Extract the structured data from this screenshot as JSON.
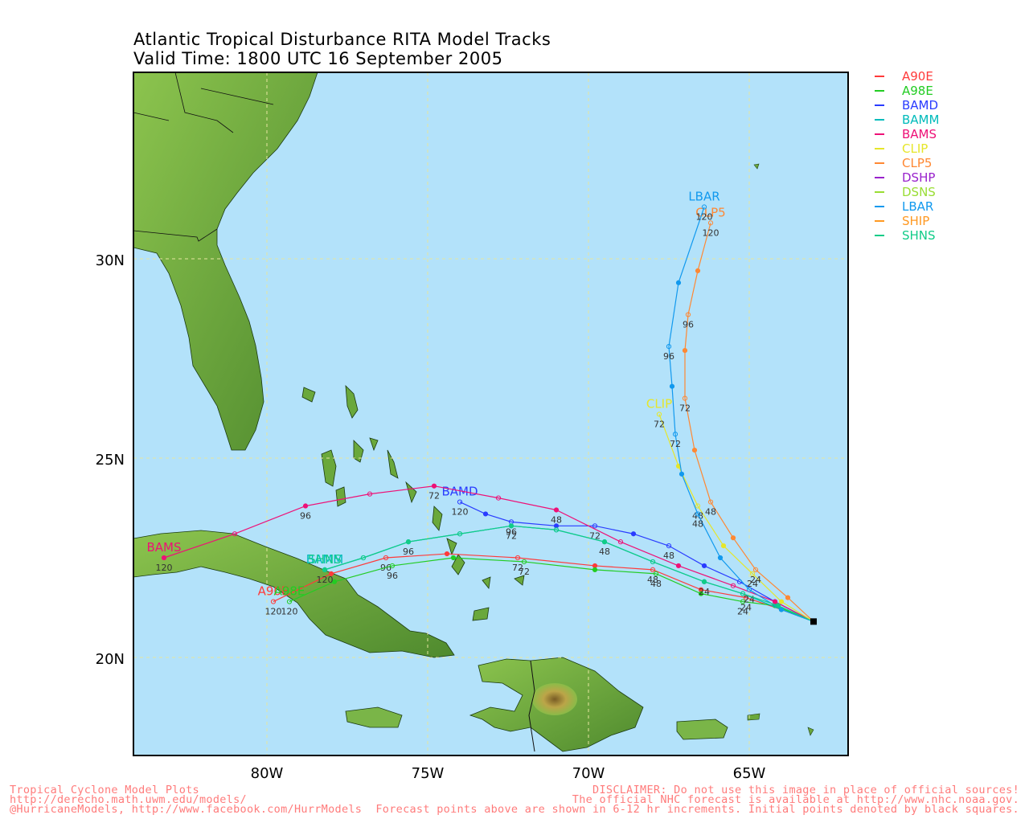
{
  "title_line1": "Atlantic Tropical Disturbance RITA Model Tracks",
  "title_line2": "Valid Time: 1800 UTC 16 September 2005",
  "axes": {
    "lat_labels": [
      "30N",
      "25N",
      "20N"
    ],
    "lon_labels": [
      "80W",
      "75W",
      "70W",
      "65W"
    ],
    "lon_range": [
      -84.0,
      -62.0
    ],
    "lat_range": [
      17.5,
      35.0
    ],
    "grid": true
  },
  "colors": {
    "ocean": "#b3e2fa",
    "land": "#5f9a3a",
    "grid": "#e6e6a0"
  },
  "models": [
    {
      "name": "A90E",
      "color": "#ff3a3a"
    },
    {
      "name": "A98E",
      "color": "#22cc22"
    },
    {
      "name": "BAMD",
      "color": "#2a3cff"
    },
    {
      "name": "BAMM",
      "color": "#00bbbb"
    },
    {
      "name": "BAMS",
      "color": "#ee1177"
    },
    {
      "name": "CLIP",
      "color": "#e6e62a"
    },
    {
      "name": "CLP5",
      "color": "#ff8833"
    },
    {
      "name": "DSHP",
      "color": "#9922cc"
    },
    {
      "name": "DSNS",
      "color": "#99dd33"
    },
    {
      "name": "LBAR",
      "color": "#1199ee"
    },
    {
      "name": "SHIP",
      "color": "#ff9922"
    },
    {
      "name": "SHNS",
      "color": "#11cc88"
    }
  ],
  "initial_position": {
    "lon": -63.0,
    "lat": 20.9
  },
  "chart_data": {
    "type": "map-tracks",
    "title": "Atlantic Tropical Disturbance RITA Model Tracks",
    "subtitle": "Valid Time: 1800 UTC 16 September 2005",
    "tracks": [
      {
        "name": "A90E",
        "end_label": "A90E",
        "points": [
          [
            -63.0,
            20.9
          ],
          [
            -64.0,
            21.2
          ],
          [
            -65.1,
            21.5
          ],
          [
            -66.5,
            21.7
          ],
          [
            -68.0,
            22.2
          ],
          [
            -69.8,
            22.3
          ],
          [
            -72.2,
            22.5
          ],
          [
            -74.4,
            22.6
          ],
          [
            -76.3,
            22.5
          ],
          [
            -78.0,
            22.1
          ],
          [
            -79.8,
            21.4
          ]
        ],
        "hour_labels": [
          {
            "t": "24",
            "lon": -65.1,
            "lat": 21.5
          },
          {
            "t": "48",
            "lon": -68.0,
            "lat": 22.2
          },
          {
            "t": "72",
            "lon": -72.2,
            "lat": 22.5
          },
          {
            "t": "96",
            "lon": -76.3,
            "lat": 22.5
          },
          {
            "t": "120",
            "lon": -79.8,
            "lat": 21.4
          }
        ]
      },
      {
        "name": "A98E",
        "end_label": "A98E",
        "points": [
          [
            -63.0,
            20.9
          ],
          [
            -64.2,
            21.3
          ],
          [
            -65.2,
            21.4
          ],
          [
            -66.5,
            21.6
          ],
          [
            -67.9,
            22.1
          ],
          [
            -69.8,
            22.2
          ],
          [
            -72.0,
            22.4
          ],
          [
            -74.2,
            22.5
          ],
          [
            -76.1,
            22.3
          ],
          [
            -77.9,
            21.9
          ],
          [
            -79.3,
            21.4
          ]
        ],
        "hour_labels": [
          {
            "t": "24",
            "lon": -65.2,
            "lat": 21.4
          },
          {
            "t": "48",
            "lon": -67.9,
            "lat": 22.1
          },
          {
            "t": "72",
            "lon": -72.0,
            "lat": 22.4
          },
          {
            "t": "96",
            "lon": -76.1,
            "lat": 22.3
          },
          {
            "t": "120",
            "lon": -79.3,
            "lat": 21.4
          }
        ]
      },
      {
        "name": "BAMD",
        "end_label": "BAMD",
        "points": [
          [
            -63.0,
            20.9
          ],
          [
            -64.2,
            21.4
          ],
          [
            -65.3,
            21.9
          ],
          [
            -66.4,
            22.3
          ],
          [
            -67.5,
            22.8
          ],
          [
            -68.6,
            23.1
          ],
          [
            -69.8,
            23.3
          ],
          [
            -71.0,
            23.3
          ],
          [
            -72.4,
            23.4
          ],
          [
            -73.2,
            23.6
          ],
          [
            -74.0,
            23.9
          ]
        ],
        "hour_labels": [
          {
            "t": "48",
            "lon": -67.5,
            "lat": 22.8
          },
          {
            "t": "72",
            "lon": -69.8,
            "lat": 23.3
          },
          {
            "t": "96",
            "lon": -72.4,
            "lat": 23.4
          },
          {
            "t": "120",
            "lon": -74.0,
            "lat": 23.9
          }
        ]
      },
      {
        "name": "BAMM",
        "end_label": "BAMM",
        "points": [
          [
            -63.0,
            20.9
          ],
          [
            -64.0,
            21.2
          ],
          [
            -65.2,
            21.6
          ],
          [
            -66.4,
            21.9
          ],
          [
            -68.0,
            22.4
          ],
          [
            -69.5,
            22.9
          ],
          [
            -71.0,
            23.2
          ],
          [
            -72.4,
            23.3
          ],
          [
            -74.0,
            23.1
          ],
          [
            -75.6,
            22.9
          ],
          [
            -77.0,
            22.5
          ],
          [
            -78.2,
            22.2
          ]
        ],
        "hour_labels": [
          {
            "t": "24",
            "lon": -66.4,
            "lat": 21.9
          },
          {
            "t": "48",
            "lon": -69.5,
            "lat": 22.9
          },
          {
            "t": "72",
            "lon": -72.4,
            "lat": 23.3
          },
          {
            "t": "96",
            "lon": -75.6,
            "lat": 22.9
          },
          {
            "t": "120",
            "lon": -78.2,
            "lat": 22.2
          }
        ]
      },
      {
        "name": "BAMS",
        "end_label": "BAMS",
        "points": [
          [
            -63.0,
            20.9
          ],
          [
            -64.2,
            21.4
          ],
          [
            -65.5,
            21.8
          ],
          [
            -67.2,
            22.3
          ],
          [
            -69.0,
            22.9
          ],
          [
            -71.0,
            23.7
          ],
          [
            -72.8,
            24.0
          ],
          [
            -74.8,
            24.3
          ],
          [
            -76.8,
            24.1
          ],
          [
            -78.8,
            23.8
          ],
          [
            -81.0,
            23.1
          ],
          [
            -83.2,
            22.5
          ]
        ],
        "hour_labels": [
          {
            "t": "48",
            "lon": -71.0,
            "lat": 23.7
          },
          {
            "t": "72",
            "lon": -74.8,
            "lat": 24.3
          },
          {
            "t": "96",
            "lon": -78.8,
            "lat": 23.8
          },
          {
            "t": "120",
            "lon": -83.2,
            "lat": 22.5
          }
        ]
      },
      {
        "name": "CLIP",
        "end_label": "CLIP",
        "points": [
          [
            -63.0,
            20.9
          ],
          [
            -64.0,
            21.4
          ],
          [
            -64.9,
            22.1
          ],
          [
            -65.8,
            22.8
          ],
          [
            -66.6,
            23.8
          ],
          [
            -67.2,
            24.8
          ],
          [
            -67.8,
            26.1
          ]
        ],
        "hour_labels": [
          {
            "t": "24",
            "lon": -64.9,
            "lat": 22.1
          },
          {
            "t": "48",
            "lon": -66.6,
            "lat": 23.8
          },
          {
            "t": "72",
            "lon": -67.8,
            "lat": 26.1
          }
        ]
      },
      {
        "name": "CLP5",
        "end_label": "CLP5",
        "points": [
          [
            -63.0,
            20.9
          ],
          [
            -63.8,
            21.5
          ],
          [
            -64.8,
            22.2
          ],
          [
            -65.5,
            23.0
          ],
          [
            -66.2,
            23.9
          ],
          [
            -66.7,
            25.2
          ],
          [
            -67.0,
            26.5
          ],
          [
            -67.0,
            27.7
          ],
          [
            -66.9,
            28.6
          ],
          [
            -66.6,
            29.7
          ],
          [
            -66.2,
            30.9
          ]
        ],
        "hour_labels": [
          {
            "t": "24",
            "lon": -64.8,
            "lat": 22.2
          },
          {
            "t": "48",
            "lon": -66.2,
            "lat": 23.9
          },
          {
            "t": "72",
            "lon": -67.0,
            "lat": 26.5
          },
          {
            "t": "96",
            "lon": -66.9,
            "lat": 28.6
          },
          {
            "t": "120",
            "lon": -66.2,
            "lat": 30.9
          }
        ]
      },
      {
        "name": "LBAR",
        "end_label": "LBAR",
        "points": [
          [
            -63.0,
            20.9
          ],
          [
            -64.0,
            21.2
          ],
          [
            -65.0,
            21.7
          ],
          [
            -65.9,
            22.5
          ],
          [
            -66.6,
            23.6
          ],
          [
            -67.1,
            24.6
          ],
          [
            -67.3,
            25.6
          ],
          [
            -67.4,
            26.8
          ],
          [
            -67.5,
            27.8
          ],
          [
            -67.2,
            29.4
          ],
          [
            -66.4,
            31.3
          ]
        ],
        "hour_labels": [
          {
            "t": "24",
            "lon": -65.0,
            "lat": 21.7
          },
          {
            "t": "48",
            "lon": -66.6,
            "lat": 23.6
          },
          {
            "t": "72",
            "lon": -67.3,
            "lat": 25.6
          },
          {
            "t": "96",
            "lon": -67.5,
            "lat": 27.8
          },
          {
            "t": "120",
            "lon": -66.4,
            "lat": 31.3
          }
        ]
      },
      {
        "name": "SHNS",
        "end_label": "SHNS",
        "points": [
          [
            -63.0,
            20.9
          ],
          [
            -64.1,
            21.3
          ],
          [
            -65.2,
            21.6
          ],
          [
            -66.4,
            21.9
          ],
          [
            -68.0,
            22.4
          ],
          [
            -69.5,
            22.9
          ],
          [
            -71.0,
            23.2
          ],
          [
            -72.4,
            23.3
          ],
          [
            -74.0,
            23.1
          ],
          [
            -75.6,
            22.9
          ],
          [
            -77.0,
            22.5
          ],
          [
            -78.2,
            22.2
          ]
        ],
        "hour_labels": []
      }
    ]
  },
  "footer_left": [
    "Tropical Cyclone Model Plots",
    "http://derecho.math.uwm.edu/models/",
    "@HurricaneModels, http://www.facebook.com/HurrModels"
  ],
  "footer_right": [
    "DISCLAIMER: Do not use this image in place of official sources!",
    "The official NHC forecast is available at http://www.nhc.noaa.gov.",
    "Forecast points above are shown in 6-12 hr increments. Initial points denoted by black squares."
  ]
}
